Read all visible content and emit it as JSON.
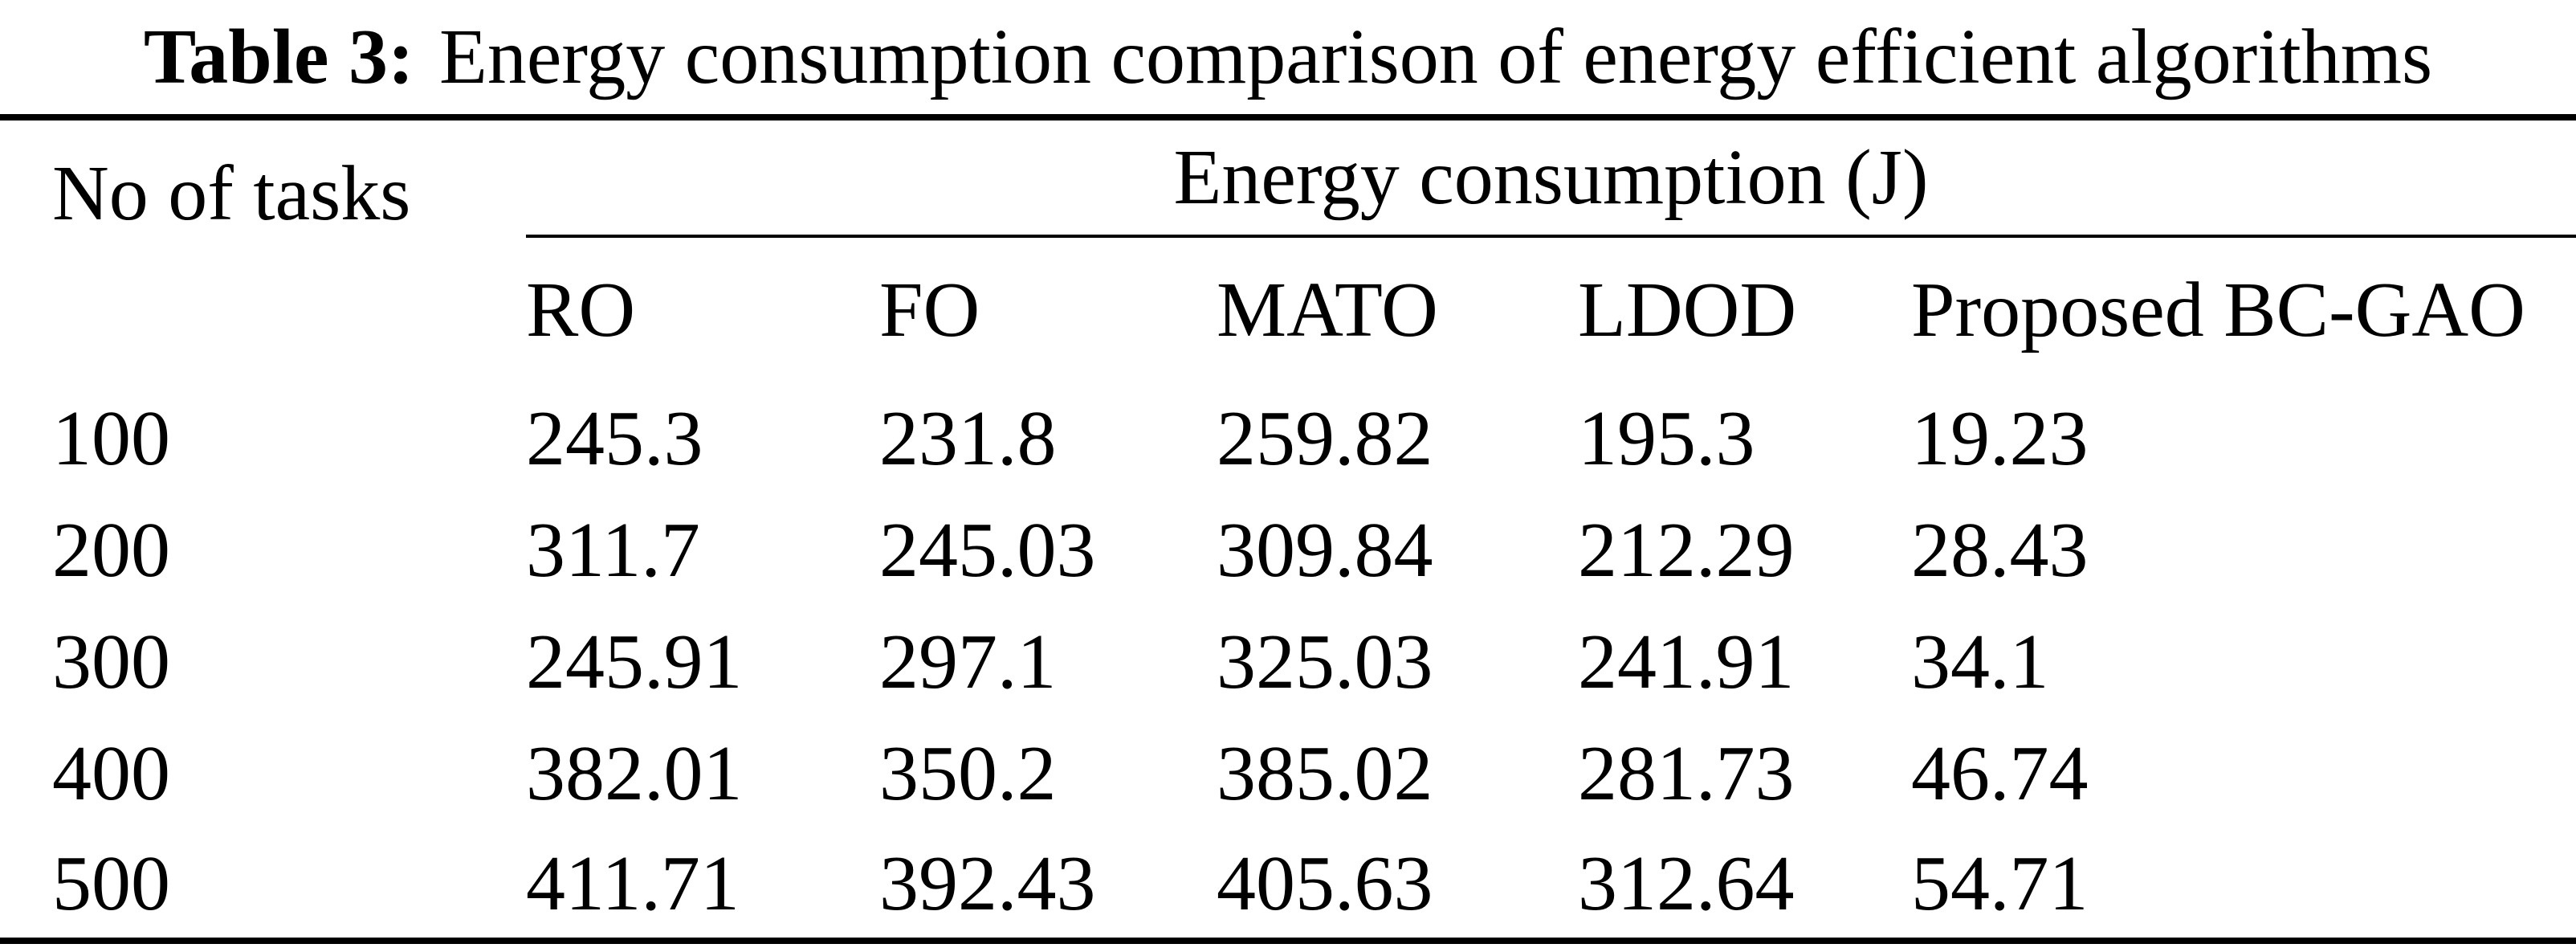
{
  "caption": {
    "label": "Table 3:",
    "text": "Energy consumption comparison of energy efficient algorithms"
  },
  "table": {
    "col1_header": "No of tasks",
    "group_header": "Energy consumption (J)",
    "columns": [
      "RO",
      "FO",
      "MATO",
      "LDOD",
      "Proposed BC-GAO"
    ],
    "rows": [
      {
        "tasks": "100",
        "values": [
          "245.3",
          "231.8",
          "259.82",
          "195.3",
          "19.23"
        ]
      },
      {
        "tasks": "200",
        "values": [
          "311.7",
          "245.03",
          "309.84",
          "212.29",
          "28.43"
        ]
      },
      {
        "tasks": "300",
        "values": [
          "245.91",
          "297.1",
          "325.03",
          "241.91",
          "34.1"
        ]
      },
      {
        "tasks": "400",
        "values": [
          "382.01",
          "350.2",
          "385.02",
          "281.73",
          "46.74"
        ]
      },
      {
        "tasks": "500",
        "values": [
          "411.71",
          "392.43",
          "405.63",
          "312.64",
          "54.71"
        ]
      }
    ]
  },
  "colors": {
    "text": "#000000",
    "background": "#ffffff",
    "rule": "#000000"
  },
  "chart_data": {
    "type": "table",
    "title": "Table 3: Energy consumption comparison of energy efficient algorithms",
    "group_header": "Energy consumption (J)",
    "columns": [
      "No of tasks",
      "RO",
      "FO",
      "MATO",
      "LDOD",
      "Proposed BC-GAO"
    ],
    "rows": [
      [
        100,
        245.3,
        231.8,
        259.82,
        195.3,
        19.23
      ],
      [
        200,
        311.7,
        245.03,
        309.84,
        212.29,
        28.43
      ],
      [
        300,
        245.91,
        297.1,
        325.03,
        241.91,
        34.1
      ],
      [
        400,
        382.01,
        350.2,
        385.02,
        281.73,
        46.74
      ],
      [
        500,
        411.71,
        392.43,
        405.63,
        312.64,
        54.71
      ]
    ]
  }
}
